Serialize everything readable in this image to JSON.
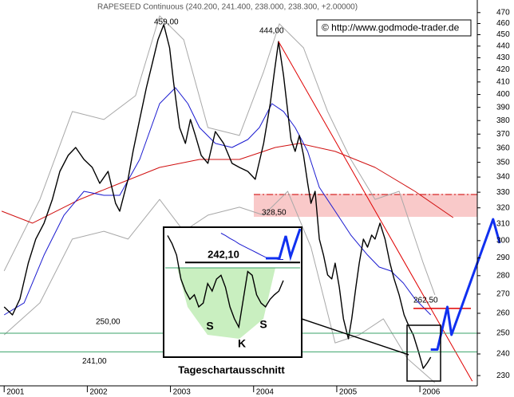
{
  "chart_data": {
    "type": "line",
    "title": "RAPESEED Continuous (240.200, 241.400, 238.000, 238.300, +2.00000)",
    "source": "© http://www.godmode-trader.de",
    "log_scale": true,
    "xlim": [
      2000.95,
      2006.69
    ],
    "xticks": [
      2001,
      2002,
      2003,
      2004,
      2005,
      2006
    ],
    "ylim": [
      225.4,
      481.8
    ],
    "yticks": [
      230,
      240,
      250,
      260,
      270,
      280,
      290,
      300,
      310,
      320,
      330,
      340,
      350,
      360,
      370,
      380,
      390,
      400,
      410,
      420,
      430,
      440,
      450,
      460,
      470
    ],
    "series": [
      {
        "color": "#000000",
        "line_width": 1.4,
        "x": [
          2001.0,
          2001.1,
          2001.19,
          2001.29,
          2001.38,
          2001.48,
          2001.58,
          2001.67,
          2001.77,
          2001.86,
          2001.96,
          2002.06,
          2002.15,
          2002.25,
          2002.34,
          2002.39,
          2002.49,
          2002.55,
          2002.63,
          2002.71,
          2002.78,
          2002.85,
          2002.92,
          2002.99,
          2003.04,
          2003.11,
          2003.18,
          2003.24,
          2003.3,
          2003.37,
          2003.45,
          2003.54,
          2003.64,
          2003.74,
          2003.83,
          2003.93,
          2004.02,
          2004.12,
          2004.2,
          2004.25,
          2004.3,
          2004.36,
          2004.41,
          2004.45,
          2004.5,
          2004.55,
          2004.6,
          2004.65,
          2004.69,
          2004.74,
          2004.79,
          2004.84,
          2004.89,
          2004.94,
          2004.98,
          2005.03,
          2005.08,
          2005.14,
          2005.18,
          2005.23,
          2005.27,
          2005.32,
          2005.37,
          2005.42,
          2005.46,
          2005.52,
          2005.58,
          2005.64,
          2005.69,
          2005.75,
          2005.81,
          2005.87,
          2005.92,
          2005.98,
          2006.04,
          2006.09,
          2006.13
        ],
        "values": [
          263.3,
          259.2,
          267.5,
          287.0,
          300.9,
          310.5,
          325.4,
          343.8,
          354.8,
          360.4,
          352.0,
          346.5,
          335.8,
          343.8,
          322.9,
          317.9,
          338.5,
          357.6,
          380.8,
          405.4,
          425.0,
          445.5,
          459.0,
          438.5,
          408.6,
          374.8,
          363.3,
          380.8,
          369.0,
          354.8,
          349.3,
          371.9,
          363.3,
          349.3,
          346.5,
          343.8,
          338.5,
          363.3,
          392.9,
          418.4,
          444.0,
          415.1,
          386.8,
          366.1,
          357.6,
          369.0,
          354.8,
          335.8,
          322.9,
          330.6,
          300.9,
          291.6,
          280.4,
          278.2,
          287.0,
          273.8,
          257.2,
          247.3,
          257.2,
          273.8,
          287.0,
          300.9,
          296.2,
          303.3,
          300.9,
          310.5,
          300.9,
          287.0,
          278.2,
          269.6,
          259.2,
          253.2,
          249.2,
          241.5,
          233.3,
          235.9,
          238.5
        ]
      },
      {
        "color": "#1a1ad0",
        "line_width": 1,
        "x": [
          2001.0,
          2001.24,
          2001.48,
          2001.72,
          2001.96,
          2002.2,
          2002.39,
          2002.63,
          2002.87,
          2003.06,
          2003.21,
          2003.35,
          2003.54,
          2003.74,
          2003.93,
          2004.07,
          2004.22,
          2004.36,
          2004.5,
          2004.65,
          2004.79,
          2004.98,
          2005.17,
          2005.37,
          2005.51,
          2005.65,
          2005.8,
          2005.94,
          2006.13
        ],
        "values": [
          259.2,
          265.4,
          291.6,
          315.4,
          330.6,
          328.0,
          328.0,
          352.0,
          392.9,
          405.4,
          392.9,
          374.8,
          363.3,
          360.4,
          366.1,
          374.8,
          392.9,
          386.8,
          374.8,
          357.6,
          333.2,
          317.9,
          303.3,
          291.6,
          284.8,
          282.6,
          276.0,
          267.5,
          259.2
        ]
      },
      {
        "color": "#d01010",
        "line_width": 1,
        "x": [
          2000.97,
          2001.34,
          2001.91,
          2002.39,
          2002.87,
          2003.35,
          2003.83,
          2004.26,
          2004.55,
          2004.98,
          2005.46,
          2005.94,
          2006.4
        ],
        "values": [
          317.9,
          310.5,
          325.4,
          335.8,
          346.5,
          352.0,
          352.0,
          360.4,
          363.3,
          357.6,
          346.5,
          330.6,
          313.9
        ]
      },
      {
        "color": "#a8a8a8",
        "line_width": 1,
        "x": [
          2001.0,
          2001.43,
          2001.82,
          2002.2,
          2002.58,
          2002.87,
          2003.16,
          2003.45,
          2003.83,
          2004.12,
          2004.31,
          2004.6,
          2004.89,
          2005.17,
          2005.46,
          2005.75,
          2006.04,
          2006.18
        ],
        "values": [
          282.6,
          325.4,
          386.8,
          380.8,
          399.1,
          467.0,
          445.5,
          374.8,
          369.0,
          418.4,
          459.7,
          438.5,
          386.8,
          352.0,
          325.4,
          330.6,
          287.0,
          269.6
        ]
      },
      {
        "color": "#a8a8a8",
        "line_width": 1,
        "x": [
          2001.0,
          2001.43,
          2001.82,
          2002.2,
          2002.49,
          2002.87,
          2003.16,
          2003.45,
          2003.83,
          2004.12,
          2004.41,
          2004.69,
          2004.98,
          2005.27,
          2005.56,
          2005.85,
          2006.18
        ],
        "values": [
          249.2,
          265.4,
          300.9,
          305.6,
          300.9,
          325.4,
          305.6,
          315.4,
          320.4,
          315.4,
          330.6,
          296.2,
          245.3,
          249.2,
          257.2,
          237.8,
          226.8
        ]
      },
      {
        "color": "#e00000",
        "line_width": 1,
        "x": [
          2004.3,
          2006.63
        ],
        "values": [
          444.0,
          227.5
        ]
      },
      {
        "color": "#1030f0",
        "line_width": 3,
        "x": [
          2006.13,
          2006.21,
          2006.33,
          2006.38,
          2006.88,
          2006.96
        ],
        "values": [
          242.1,
          242.1,
          263.3,
          249.2,
          312.9,
          298.5
        ]
      }
    ],
    "peak_labels": [
      "459,00",
      "444,00"
    ],
    "levels": [
      {
        "value": 250,
        "label": "250,00",
        "color": "#3aa36a"
      },
      {
        "value": 241,
        "label": "241,00",
        "color": "#3aa36a"
      },
      {
        "value": 262.5,
        "label": "262,50",
        "color": "#e00000"
      }
    ],
    "zone": {
      "ymin": 314.4,
      "ymax": 329.0,
      "color": "#f9c9c9",
      "line": {
        "value": 328.5,
        "label": "328,50",
        "color": "#d01010"
      }
    },
    "inset": {
      "ylim": [
        229.5,
        246.8
      ],
      "values": [
        245.7,
        244.6,
        243.1,
        239.9,
        238.3,
        237.2,
        237.8,
        236.2,
        236.7,
        239.3,
        238.3,
        239.9,
        240.4,
        238.8,
        236.2,
        234.6,
        233.5,
        237.2,
        240.9,
        240.4,
        237.8,
        236.7,
        236.2,
        237.2,
        237.8,
        238.3,
        239.7
      ],
      "ma": [
        null,
        null,
        null,
        null,
        null,
        null,
        null,
        null,
        null,
        null,
        null,
        null,
        246.0,
        245.7,
        245.3,
        245.0,
        244.6,
        244.3,
        244.0,
        243.7,
        243.4,
        243.1,
        242.8,
        242.7,
        242.6,
        242.5,
        242.5
      ],
      "level": {
        "value": 242.1,
        "label": "242,10"
      },
      "marks": [
        "S",
        "K",
        "S"
      ],
      "caption": "Tageschartausschnitt"
    }
  }
}
